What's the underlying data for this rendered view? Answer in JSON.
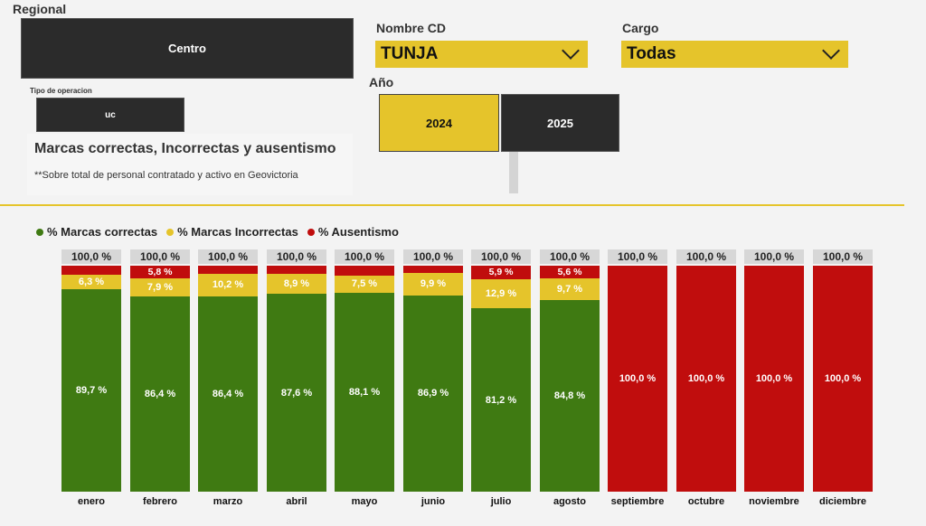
{
  "colors": {
    "green": "#3f7a12",
    "yellow": "#e5c42b",
    "red": "#c00d0d",
    "dark": "#2b2b2b"
  },
  "filters": {
    "regional": {
      "label": "Regional",
      "value": "Centro"
    },
    "tipo_operacion": {
      "label": "Tipo de operacion",
      "value": "uc"
    },
    "nombre_cd": {
      "label": "Nombre CD",
      "value": "TUNJA"
    },
    "cargo": {
      "label": "Cargo",
      "value": "Todas"
    },
    "anio": {
      "label": "Año",
      "options": [
        "2024",
        "2025"
      ],
      "selected": "2024"
    }
  },
  "card": {
    "title": "Marcas correctas, Incorrectas y ausentismo",
    "subtitle": "**Sobre total de personal contratado y activo en Geovictoria"
  },
  "chart_data": {
    "type": "bar",
    "stacked": "100%",
    "title": "",
    "categories": [
      "enero",
      "febrero",
      "marzo",
      "abril",
      "mayo",
      "junio",
      "julio",
      "agosto",
      "septiembre",
      "octubre",
      "noviembre",
      "diciembre"
    ],
    "series": [
      {
        "name": "% Marcas correctas",
        "color": "#3f7a12",
        "values": [
          89.7,
          86.4,
          86.4,
          87.6,
          88.1,
          86.9,
          81.2,
          84.8,
          0,
          0,
          0,
          0
        ],
        "labels": [
          "89,7 %",
          "86,4 %",
          "86,4 %",
          "87,6 %",
          "88,1 %",
          "86,9 %",
          "81,2 %",
          "84,8 %",
          "",
          "",
          "",
          ""
        ]
      },
      {
        "name": "% Marcas Incorrectas",
        "color": "#e5c42b",
        "values": [
          6.3,
          7.9,
          10.2,
          8.9,
          7.5,
          9.9,
          12.9,
          9.7,
          0,
          0,
          0,
          0
        ],
        "labels": [
          "6,3 %",
          "7,9 %",
          "10,2 %",
          "8,9 %",
          "7,5 %",
          "9,9 %",
          "12,9 %",
          "9,7 %",
          "",
          "",
          "",
          ""
        ]
      },
      {
        "name": "% Ausentismo",
        "color": "#c00d0d",
        "values": [
          4.0,
          5.8,
          3.4,
          3.5,
          4.4,
          3.2,
          5.9,
          5.6,
          100,
          100,
          100,
          100
        ],
        "labels": [
          "",
          "5,8 %",
          "",
          "",
          "",
          "",
          "5,9 %",
          "5,6 %",
          "100,0 %",
          "100,0 %",
          "100,0 %",
          "100,0 %"
        ]
      }
    ],
    "totals": [
      "100,0 %",
      "100,0 %",
      "100,0 %",
      "100,0 %",
      "100,0 %",
      "100,0 %",
      "100,0 %",
      "100,0 %",
      "100,0 %",
      "100,0 %",
      "100,0 %",
      "100,0 %"
    ],
    "ylim": [
      0,
      100
    ],
    "legend_position": "top-left"
  }
}
